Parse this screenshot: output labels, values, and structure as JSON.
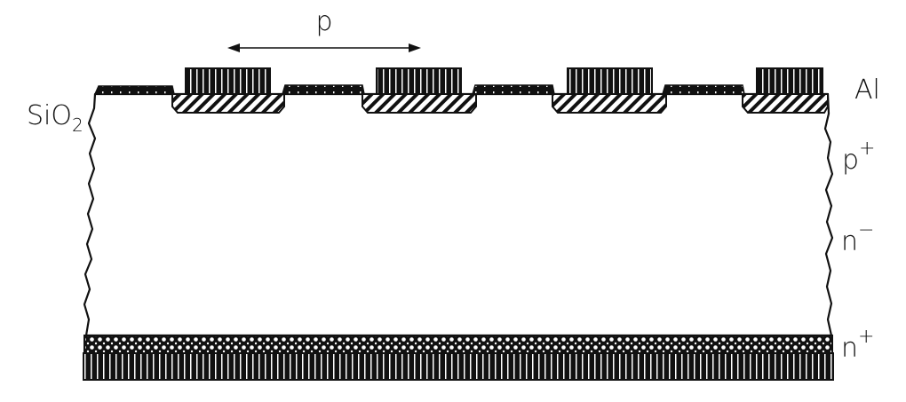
{
  "labels": {
    "pitch": "p",
    "oxide_main": "SiO",
    "oxide_sub": "2",
    "metal": "Al",
    "p_plus_main": "p",
    "p_plus_sup": "+",
    "n_minus_main": "n",
    "n_minus_sup": "−",
    "n_plus_main": "n",
    "n_plus_sup": "+"
  },
  "colors": {
    "ink": "#111111",
    "background": "#ffffff"
  },
  "structure": {
    "strip_count": 4,
    "oxide_segment_count": 4
  }
}
